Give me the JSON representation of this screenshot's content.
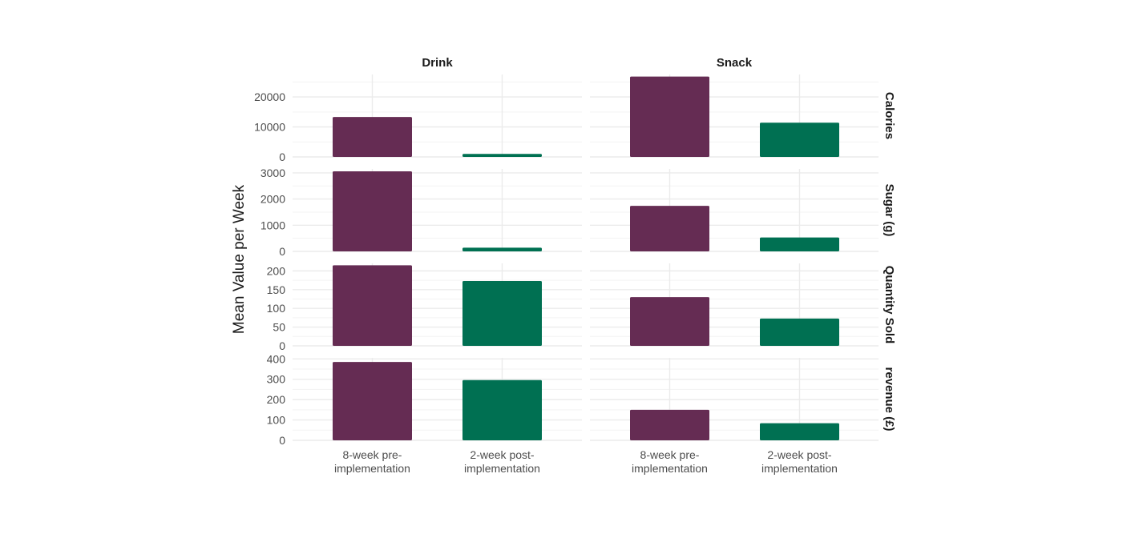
{
  "chart_data": {
    "type": "bar",
    "ylabel": "Mean Value per Week",
    "xlabel": "",
    "columns": [
      "Drink",
      "Snack"
    ],
    "rows": [
      "Calories",
      "Sugar (g)",
      "Quantity Sold",
      "revenue (£)"
    ],
    "categories": [
      [
        "8-week pre-",
        "implementation"
      ],
      [
        "2-week post-",
        "implementation"
      ]
    ],
    "colors": [
      "#652C53",
      "#007052"
    ],
    "grid": true,
    "scales": "free_y",
    "panels": [
      {
        "row": "Calories",
        "ylim": [
          0,
          27500
        ],
        "ticks": [
          "0",
          "10000",
          "20000"
        ],
        "tick_values": [
          0,
          10000,
          20000
        ],
        "values": {
          "Drink": [
            13300,
            1000
          ],
          "Snack": [
            26800,
            11400
          ]
        }
      },
      {
        "row": "Sugar (g)",
        "ylim": [
          0,
          3150
        ],
        "ticks": [
          "0",
          "1000",
          "2000",
          "3000"
        ],
        "tick_values": [
          0,
          1000,
          2000,
          3000
        ],
        "values": {
          "Drink": [
            3060,
            140
          ],
          "Snack": [
            1740,
            530
          ]
        }
      },
      {
        "row": "Quantity Sold",
        "ylim": [
          0,
          220
        ],
        "ticks": [
          "0",
          "50",
          "100",
          "150",
          "200"
        ],
        "tick_values": [
          0,
          50,
          100,
          150,
          200
        ],
        "values": {
          "Drink": [
            215,
            173
          ],
          "Snack": [
            130,
            73
          ]
        }
      },
      {
        "row": "revenue (£)",
        "ylim": [
          0,
          405
        ],
        "ticks": [
          "0",
          "100",
          "200",
          "300",
          "400"
        ],
        "tick_values": [
          0,
          100,
          200,
          300,
          400
        ],
        "values": {
          "Drink": [
            385,
            296
          ],
          "Snack": [
            150,
            84
          ]
        }
      }
    ]
  }
}
